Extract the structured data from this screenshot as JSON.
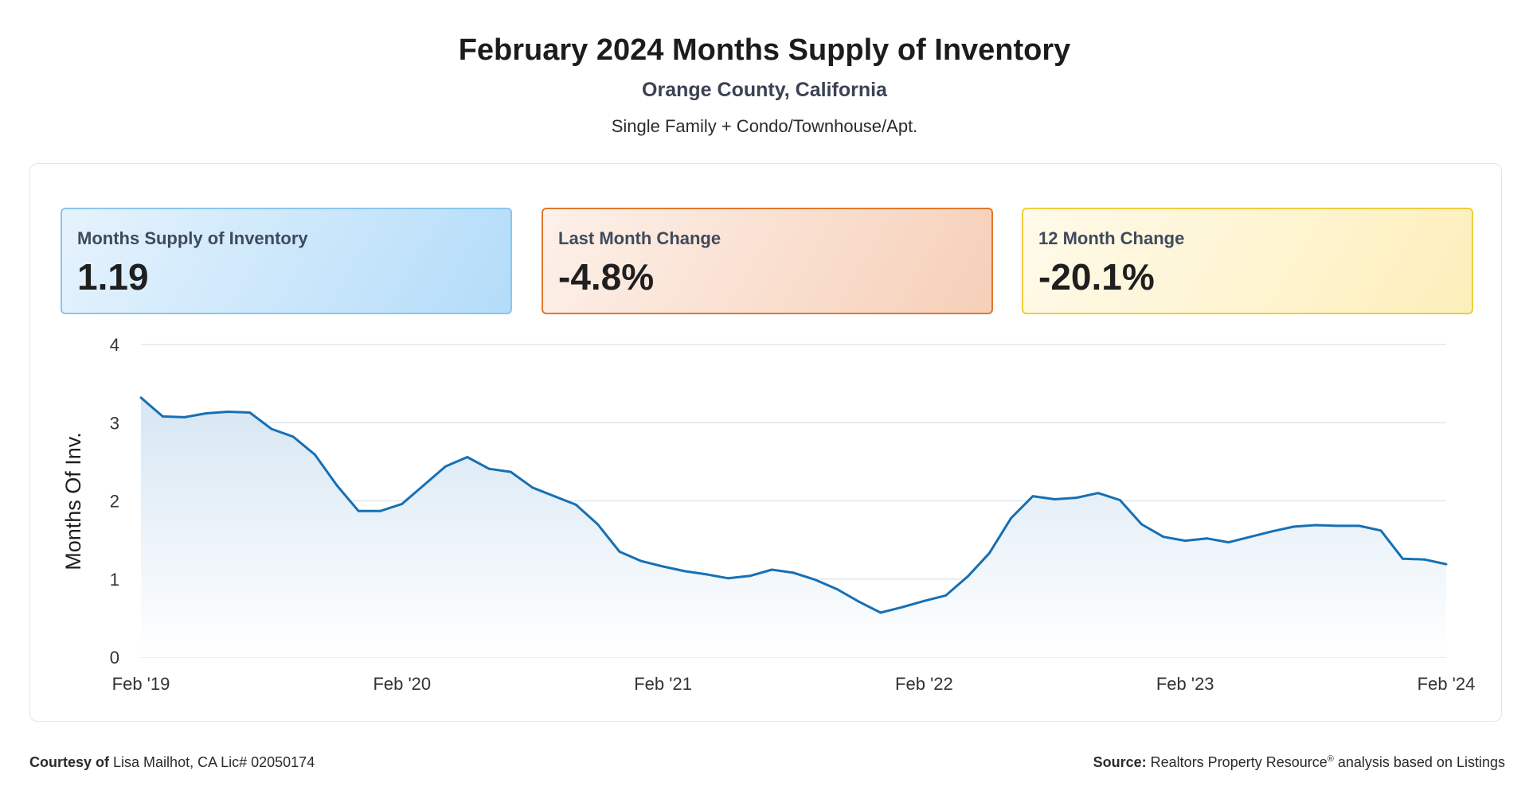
{
  "header": {
    "title": "February 2024 Months Supply of Inventory",
    "subtitle": "Orange County, California",
    "subsubtitle": "Single Family + Condo/Townhouse/Apt."
  },
  "cards": [
    {
      "label": "Months Supply of Inventory",
      "value": "1.19"
    },
    {
      "label": "Last Month Change",
      "value": "-4.8%"
    },
    {
      "label": "12 Month Change",
      "value": "-20.1%"
    }
  ],
  "chart_data": {
    "type": "area",
    "ylabel": "Months Of Inv.",
    "ylim": [
      0,
      4
    ],
    "yticks": [
      "0",
      "1",
      "2",
      "3",
      "4"
    ],
    "x_tick_labels": [
      "Feb '19",
      "Feb '20",
      "Feb '21",
      "Feb '22",
      "Feb '23",
      "Feb '24"
    ],
    "grid": true,
    "colors": {
      "line": "#1670b5",
      "fill_top": "#d6e6f3",
      "fill_bottom": "#ffffff",
      "grid": "#e3e6ea"
    },
    "series": [
      {
        "name": "Months Supply of Inventory",
        "start": "Feb 2019",
        "values": [
          3.32,
          3.08,
          3.07,
          3.12,
          3.14,
          3.13,
          2.92,
          2.82,
          2.59,
          2.2,
          1.87,
          1.87,
          1.96,
          2.2,
          2.44,
          2.56,
          2.41,
          2.37,
          2.17,
          2.06,
          1.95,
          1.7,
          1.35,
          1.23,
          1.16,
          1.1,
          1.06,
          1.01,
          1.04,
          1.12,
          1.08,
          0.99,
          0.87,
          0.71,
          0.57,
          0.64,
          0.72,
          0.79,
          1.03,
          1.33,
          1.78,
          2.06,
          2.02,
          2.04,
          2.1,
          2.01,
          1.7,
          1.54,
          1.49,
          1.52,
          1.47,
          1.54,
          1.61,
          1.67,
          1.69,
          1.68,
          1.68,
          1.62,
          1.26,
          1.25,
          1.19
        ]
      }
    ]
  },
  "footer": {
    "courtesy_label": "Courtesy of",
    "courtesy_text": "Lisa Mailhot, CA Lic# 02050174",
    "source_label": "Source:",
    "source_text_1": "Realtors Property Resource",
    "source_reg": "®",
    "source_text_2": " analysis based on Listings"
  }
}
